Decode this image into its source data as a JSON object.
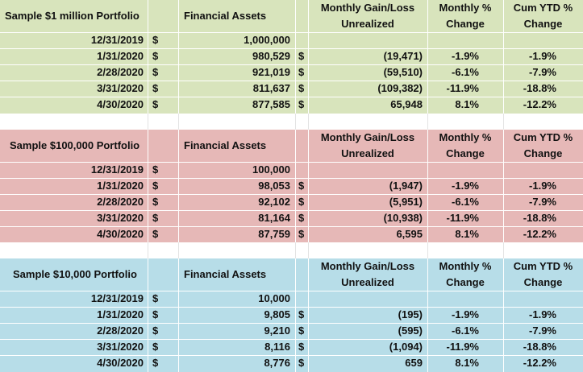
{
  "colors": {
    "section_1": "#d8e4bc",
    "section_2": "#e6b8b7",
    "section_3": "#b7dde8"
  },
  "header": {
    "assets_label": "Financial Assets",
    "gain_line1": "Monthly Gain/Loss",
    "gain_line2": "Unrealized",
    "pct_line1": "Monthly %",
    "pct_line2": "Change",
    "ytd_line1": "Cum YTD %",
    "ytd_line2": "Change"
  },
  "sections": [
    {
      "title": "Sample $1 million Portfolio",
      "rows": [
        {
          "date": "12/31/2019",
          "cur1": "$",
          "assets": "1,000,000",
          "cur2": "",
          "gain": "",
          "pct": "",
          "ytd": ""
        },
        {
          "date": "1/31/2020",
          "cur1": "$",
          "assets": "980,529",
          "cur2": "$",
          "gain": "(19,471)",
          "pct": "-1.9%",
          "ytd": "-1.9%"
        },
        {
          "date": "2/28/2020",
          "cur1": "$",
          "assets": "921,019",
          "cur2": "$",
          "gain": "(59,510)",
          "pct": "-6.1%",
          "ytd": "-7.9%"
        },
        {
          "date": "3/31/2020",
          "cur1": "$",
          "assets": "811,637",
          "cur2": "$",
          "gain": "(109,382)",
          "pct": "-11.9%",
          "ytd": "-18.8%"
        },
        {
          "date": "4/30/2020",
          "cur1": "$",
          "assets": "877,585",
          "cur2": "$",
          "gain": "65,948",
          "pct": "8.1%",
          "ytd": "-12.2%"
        }
      ]
    },
    {
      "title": "Sample $100,000 Portfolio",
      "rows": [
        {
          "date": "12/31/2019",
          "cur1": "$",
          "assets": "100,000",
          "cur2": "",
          "gain": "",
          "pct": "",
          "ytd": ""
        },
        {
          "date": "1/31/2020",
          "cur1": "$",
          "assets": "98,053",
          "cur2": "$",
          "gain": "(1,947)",
          "pct": "-1.9%",
          "ytd": "-1.9%"
        },
        {
          "date": "2/28/2020",
          "cur1": "$",
          "assets": "92,102",
          "cur2": "$",
          "gain": "(5,951)",
          "pct": "-6.1%",
          "ytd": "-7.9%"
        },
        {
          "date": "3/31/2020",
          "cur1": "$",
          "assets": "81,164",
          "cur2": "$",
          "gain": "(10,938)",
          "pct": "-11.9%",
          "ytd": "-18.8%"
        },
        {
          "date": "4/30/2020",
          "cur1": "$",
          "assets": "87,759",
          "cur2": "$",
          "gain": "6,595",
          "pct": "8.1%",
          "ytd": "-12.2%"
        }
      ]
    },
    {
      "title": "Sample $10,000 Portfolio",
      "rows": [
        {
          "date": "12/31/2019",
          "cur1": "$",
          "assets": "10,000",
          "cur2": "",
          "gain": "",
          "pct": "",
          "ytd": ""
        },
        {
          "date": "1/31/2020",
          "cur1": "$",
          "assets": "9,805",
          "cur2": "$",
          "gain": "(195)",
          "pct": "-1.9%",
          "ytd": "-1.9%"
        },
        {
          "date": "2/28/2020",
          "cur1": "$",
          "assets": "9,210",
          "cur2": "$",
          "gain": "(595)",
          "pct": "-6.1%",
          "ytd": "-7.9%"
        },
        {
          "date": "3/31/2020",
          "cur1": "$",
          "assets": "8,116",
          "cur2": "$",
          "gain": "(1,094)",
          "pct": "-11.9%",
          "ytd": "-18.8%"
        },
        {
          "date": "4/30/2020",
          "cur1": "$",
          "assets": "8,776",
          "cur2": "$",
          "gain": "659",
          "pct": "8.1%",
          "ytd": "-12.2%"
        }
      ]
    }
  ]
}
